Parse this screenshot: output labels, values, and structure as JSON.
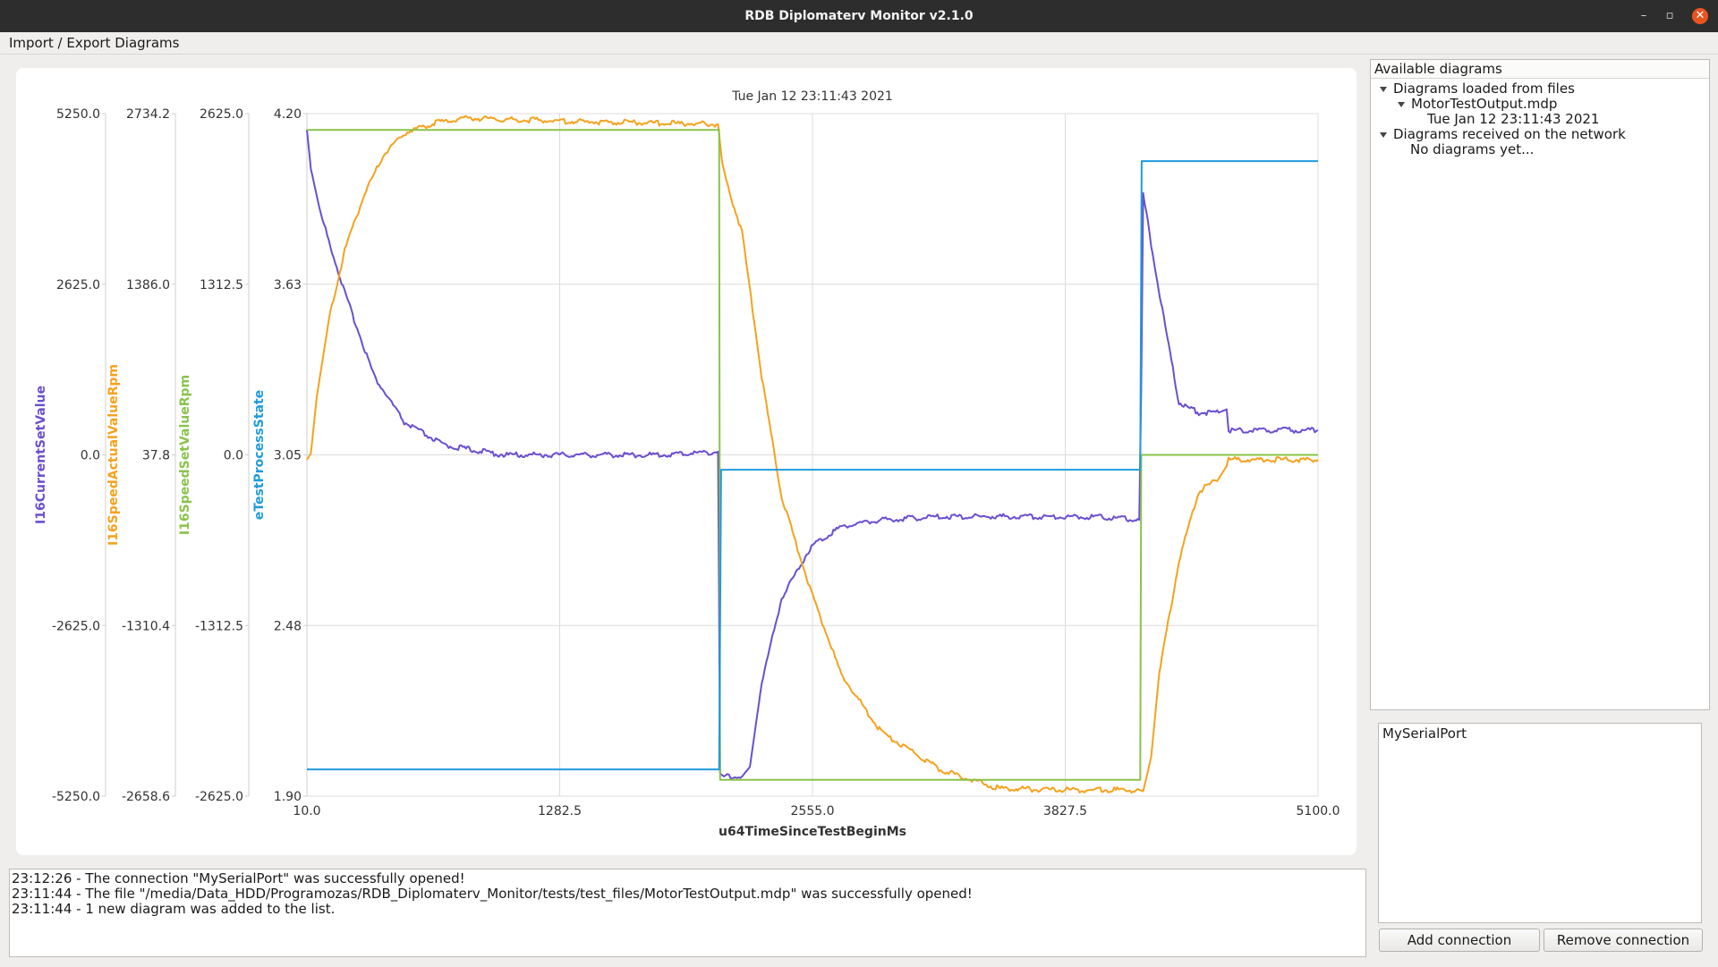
{
  "window": {
    "title": "RDB Diplomaterv Monitor v2.1.0",
    "controls": [
      "–",
      "▫",
      "✕"
    ]
  },
  "menu": {
    "items": [
      "Import / Export Diagrams"
    ]
  },
  "colors": {
    "accent": "#e95420",
    "purple": "#6a4fd0",
    "orange": "#f5a21e",
    "green": "#8ac34a",
    "blue": "#1f9bdc"
  },
  "chart_data": {
    "type": "line",
    "title": "Tue Jan 12 23:11:43 2021",
    "xlabel": "u64TimeSinceTestBeginMs",
    "xlim": [
      10.0,
      5100.0
    ],
    "x_ticks": [
      "10.0",
      "1282.5",
      "2555.0",
      "3827.5",
      "5100.0"
    ],
    "grid": true,
    "y_axes": [
      {
        "name": "I16CurrentSetValue",
        "color": "#6a4fd0",
        "ticks": [
          "5250.0",
          "2625.0",
          "0.0",
          "-2625.0",
          "-5250.0"
        ],
        "ylim": [
          -5250,
          5250
        ]
      },
      {
        "name": "I16SpeedActualValueRpm",
        "color": "#f5a21e",
        "ticks": [
          "2734.2",
          "1386.0",
          "37.8",
          "-1310.4",
          "-2658.6"
        ],
        "ylim": [
          -2658.6,
          2734.2
        ]
      },
      {
        "name": "I16SpeedSetValueRpm",
        "color": "#8ac34a",
        "ticks": [
          "2625.0",
          "1312.5",
          "0.0",
          "-1312.5",
          "-2625.0"
        ],
        "ylim": [
          -2625,
          2625
        ]
      },
      {
        "name": "eTestProcessState",
        "color": "#1f9bdc",
        "ticks": [
          "4.20",
          "3.63",
          "3.05",
          "2.48",
          "1.90"
        ],
        "ylim": [
          1.9,
          4.2
        ]
      }
    ],
    "series": [
      {
        "name": "I16CurrentSetValue",
        "color": "#6a4fd0",
        "axis": 0,
        "x": [
          10,
          30,
          80,
          200,
          350,
          500,
          700,
          1000,
          1400,
          1800,
          2080,
          2090,
          2110,
          2200,
          2240,
          2300,
          2400,
          2550,
          2700,
          2900,
          3200,
          3500,
          4000,
          4200,
          4210,
          4220,
          4300,
          4400,
          4500,
          4600,
          4640,
          4650,
          5100
        ],
        "y": [
          5000,
          4400,
          3700,
          2500,
          1200,
          500,
          150,
          0,
          0,
          0,
          50,
          -4900,
          -4950,
          -4950,
          -4800,
          -3500,
          -2200,
          -1400,
          -1100,
          -1000,
          -950,
          -950,
          -950,
          -1000,
          1000,
          4000,
          2500,
          800,
          650,
          650,
          700,
          380,
          380
        ]
      },
      {
        "name": "I16SpeedActualValueRpm",
        "color": "#f5a21e",
        "axis": 1,
        "x": [
          10,
          30,
          60,
          120,
          200,
          300,
          400,
          500,
          650,
          800,
          1000,
          1400,
          1800,
          2080,
          2100,
          2130,
          2200,
          2300,
          2400,
          2550,
          2700,
          2900,
          3200,
          3500,
          3900,
          4200,
          4220,
          4260,
          4300,
          4400,
          4500,
          4600,
          4640,
          4650,
          5100
        ],
        "y": [
          0,
          50,
          500,
          1100,
          1650,
          2100,
          2420,
          2580,
          2660,
          2700,
          2690,
          2670,
          2660,
          2650,
          2350,
          2150,
          1800,
          650,
          -300,
          -1050,
          -1700,
          -2150,
          -2450,
          -2600,
          -2610,
          -2610,
          -2620,
          -2350,
          -1700,
          -800,
          -250,
          -150,
          -50,
          0,
          0
        ]
      },
      {
        "name": "I16SpeedSetValueRpm",
        "color": "#8ac34a",
        "axis": 2,
        "x": [
          10,
          2085,
          2090,
          4205,
          4210,
          5100
        ],
        "y": [
          2500,
          2500,
          -2500,
          -2500,
          0,
          0
        ]
      },
      {
        "name": "eTestProcessState",
        "color": "#1f9bdc",
        "axis": 3,
        "x": [
          10,
          2085,
          2095,
          4205,
          4212,
          5100
        ],
        "y": [
          1.99,
          1.99,
          3.0,
          3.0,
          4.04,
          4.04
        ]
      }
    ]
  },
  "tree": {
    "header": "Available diagrams",
    "group_files": "Diagrams loaded from files",
    "file_name": "MotorTestOutput.mdp",
    "file_diagram": "Tue Jan 12 23:11:43 2021",
    "group_network": "Diagrams received on the network",
    "network_empty": "No diagrams yet..."
  },
  "connections": {
    "items": [
      "MySerialPort"
    ],
    "add_label": "Add connection",
    "remove_label": "Remove connection"
  },
  "log": [
    "23:12:26 - The connection \"MySerialPort\" was successfully opened!",
    "23:11:44 - The file \"/media/Data_HDD/Programozas/RDB_Diplomaterv_Monitor/tests/test_files/MotorTestOutput.mdp\" was successfully opened!",
    "23:11:44 - 1 new diagram was added to the list."
  ]
}
